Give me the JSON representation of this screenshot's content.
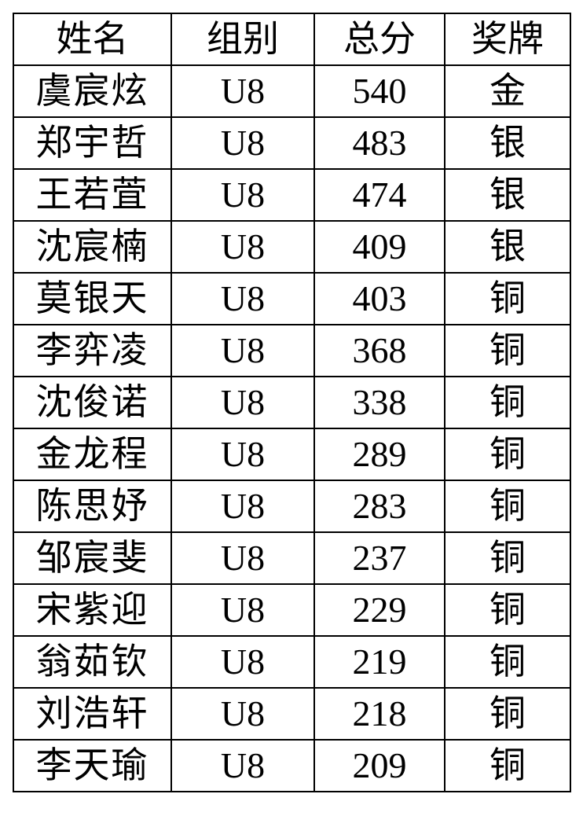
{
  "table": {
    "headers": [
      "姓名",
      "组别",
      "总分",
      "奖牌"
    ],
    "rows": [
      [
        "虞宸炫",
        "U8",
        "540",
        "金"
      ],
      [
        "郑宇哲",
        "U8",
        "483",
        "银"
      ],
      [
        "王若萓",
        "U8",
        "474",
        "银"
      ],
      [
        "沈宸楠",
        "U8",
        "409",
        "银"
      ],
      [
        "莫银天",
        "U8",
        "403",
        "铜"
      ],
      [
        "李弈凌",
        "U8",
        "368",
        "铜"
      ],
      [
        "沈俊诺",
        "U8",
        "338",
        "铜"
      ],
      [
        "金龙程",
        "U8",
        "289",
        "铜"
      ],
      [
        "陈思妤",
        "U8",
        "283",
        "铜"
      ],
      [
        "邹宸斐",
        "U8",
        "237",
        "铜"
      ],
      [
        "宋紫迎",
        "U8",
        "229",
        "铜"
      ],
      [
        "翁茹钦",
        "U8",
        "219",
        "铜"
      ],
      [
        "刘浩轩",
        "U8",
        "218",
        "铜"
      ],
      [
        "李天瑜",
        "U8",
        "209",
        "铜"
      ]
    ]
  }
}
